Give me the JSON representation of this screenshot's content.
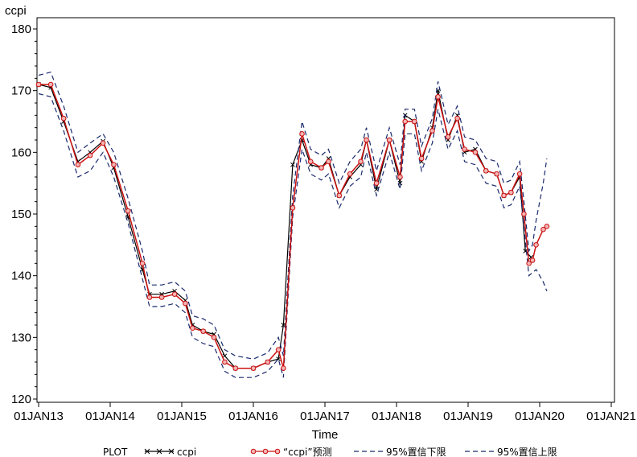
{
  "chart_data": {
    "type": "line",
    "ylabel": "ccpi",
    "xlabel": "Time",
    "ylim": [
      120,
      180
    ],
    "yticks": [
      120,
      130,
      140,
      150,
      160,
      170,
      180
    ],
    "xlim": [
      2013,
      2021
    ],
    "xticks": [
      {
        "value": 2013,
        "label": "01JAN13"
      },
      {
        "value": 2014,
        "label": "01JAN14"
      },
      {
        "value": 2015,
        "label": "01JAN15"
      },
      {
        "value": 2016,
        "label": "01JAN16"
      },
      {
        "value": 2017,
        "label": "01JAN17"
      },
      {
        "value": 2018,
        "label": "01JAN18"
      },
      {
        "value": 2019,
        "label": "01JAN19"
      },
      {
        "value": 2020,
        "label": "01JAN20"
      },
      {
        "value": 2021,
        "label": "01JAN21"
      }
    ],
    "grid": false,
    "legend_title": "PLOT",
    "legend_position": "bottom",
    "series": [
      {
        "name": "ccpi",
        "color": "#000000",
        "style": "solid-x",
        "points": [
          [
            2013.0,
            171.0
          ],
          [
            2013.17,
            170.5
          ],
          [
            2013.35,
            165.0
          ],
          [
            2013.55,
            158.5
          ],
          [
            2013.72,
            160.0
          ],
          [
            2013.9,
            161.8
          ],
          [
            2014.05,
            157.5
          ],
          [
            2014.25,
            149.5
          ],
          [
            2014.45,
            141.0
          ],
          [
            2014.55,
            137.0
          ],
          [
            2014.72,
            137.0
          ],
          [
            2014.9,
            137.5
          ],
          [
            2015.05,
            136.0
          ],
          [
            2015.15,
            132.0
          ],
          [
            2015.3,
            131.0
          ],
          [
            2015.45,
            130.5
          ],
          [
            2015.6,
            127.0
          ],
          [
            2015.75,
            125.0
          ],
          [
            2016.0,
            125.0
          ],
          [
            2016.2,
            126.0
          ],
          [
            2016.35,
            126.5
          ],
          [
            2016.42,
            132.0
          ],
          [
            2016.55,
            158.0
          ],
          [
            2016.68,
            162.0
          ],
          [
            2016.8,
            158.0
          ],
          [
            2016.95,
            157.5
          ],
          [
            2017.05,
            159.0
          ],
          [
            2017.2,
            153.0
          ],
          [
            2017.35,
            156.0
          ],
          [
            2017.5,
            158.0
          ],
          [
            2017.58,
            162.0
          ],
          [
            2017.72,
            154.0
          ],
          [
            2017.9,
            162.0
          ],
          [
            2018.05,
            155.0
          ],
          [
            2018.12,
            166.0
          ],
          [
            2018.25,
            165.0
          ],
          [
            2018.35,
            158.5
          ],
          [
            2018.5,
            164.0
          ],
          [
            2018.58,
            170.0
          ],
          [
            2018.72,
            162.0
          ],
          [
            2018.85,
            166.0
          ],
          [
            2018.95,
            160.0
          ],
          [
            2019.1,
            160.5
          ],
          [
            2019.25,
            157.0
          ],
          [
            2019.4,
            156.5
          ],
          [
            2019.5,
            153.0
          ],
          [
            2019.6,
            153.5
          ],
          [
            2019.72,
            156.0
          ],
          [
            2019.8,
            144.0
          ],
          [
            2019.88,
            143.0
          ]
        ]
      },
      {
        "name": "“ccpi”预测",
        "color": "#cc1111",
        "style": "solid-circle",
        "points": [
          [
            2013.0,
            171.0
          ],
          [
            2013.17,
            171.0
          ],
          [
            2013.35,
            165.5
          ],
          [
            2013.55,
            158.0
          ],
          [
            2013.72,
            159.5
          ],
          [
            2013.9,
            161.5
          ],
          [
            2014.05,
            158.0
          ],
          [
            2014.25,
            150.5
          ],
          [
            2014.45,
            142.0
          ],
          [
            2014.55,
            136.5
          ],
          [
            2014.72,
            136.5
          ],
          [
            2014.9,
            137.0
          ],
          [
            2015.05,
            135.5
          ],
          [
            2015.15,
            131.5
          ],
          [
            2015.3,
            131.0
          ],
          [
            2015.45,
            130.0
          ],
          [
            2015.6,
            126.0
          ],
          [
            2015.75,
            125.0
          ],
          [
            2016.0,
            125.0
          ],
          [
            2016.2,
            126.0
          ],
          [
            2016.35,
            128.0
          ],
          [
            2016.42,
            125.0
          ],
          [
            2016.55,
            151.0
          ],
          [
            2016.68,
            163.0
          ],
          [
            2016.8,
            158.5
          ],
          [
            2016.95,
            157.5
          ],
          [
            2017.05,
            158.5
          ],
          [
            2017.2,
            153.0
          ],
          [
            2017.35,
            156.5
          ],
          [
            2017.5,
            158.5
          ],
          [
            2017.58,
            162.0
          ],
          [
            2017.72,
            155.0
          ],
          [
            2017.9,
            162.0
          ],
          [
            2018.05,
            156.0
          ],
          [
            2018.12,
            165.0
          ],
          [
            2018.25,
            165.0
          ],
          [
            2018.35,
            159.0
          ],
          [
            2018.5,
            163.5
          ],
          [
            2018.58,
            169.0
          ],
          [
            2018.72,
            162.5
          ],
          [
            2018.85,
            165.5
          ],
          [
            2018.95,
            160.5
          ],
          [
            2019.1,
            160.0
          ],
          [
            2019.25,
            157.0
          ],
          [
            2019.4,
            156.5
          ],
          [
            2019.5,
            153.0
          ],
          [
            2019.6,
            153.5
          ],
          [
            2019.72,
            156.5
          ],
          [
            2019.78,
            150.0
          ],
          [
            2019.85,
            142.0
          ],
          [
            2019.9,
            142.5
          ],
          [
            2019.95,
            145.0
          ],
          [
            2020.05,
            147.5
          ],
          [
            2020.1,
            148.0
          ]
        ]
      },
      {
        "name": "95%置信下限",
        "color": "#1a2a6c",
        "style": "dashed",
        "points": [
          [
            2013.0,
            169.5
          ],
          [
            2013.17,
            169.0
          ],
          [
            2013.35,
            163.5
          ],
          [
            2013.55,
            156.0
          ],
          [
            2013.72,
            157.0
          ],
          [
            2013.9,
            160.0
          ],
          [
            2014.05,
            156.0
          ],
          [
            2014.25,
            148.5
          ],
          [
            2014.45,
            139.5
          ],
          [
            2014.55,
            135.0
          ],
          [
            2014.72,
            135.0
          ],
          [
            2014.9,
            135.5
          ],
          [
            2015.05,
            134.0
          ],
          [
            2015.15,
            130.0
          ],
          [
            2015.3,
            129.0
          ],
          [
            2015.45,
            128.5
          ],
          [
            2015.6,
            124.5
          ],
          [
            2015.75,
            123.5
          ],
          [
            2016.0,
            123.5
          ],
          [
            2016.2,
            124.5
          ],
          [
            2016.35,
            126.5
          ],
          [
            2016.42,
            123.5
          ],
          [
            2016.55,
            149.5
          ],
          [
            2016.68,
            160.5
          ],
          [
            2016.8,
            156.5
          ],
          [
            2016.95,
            155.5
          ],
          [
            2017.05,
            156.5
          ],
          [
            2017.2,
            151.0
          ],
          [
            2017.35,
            154.5
          ],
          [
            2017.5,
            156.0
          ],
          [
            2017.58,
            160.0
          ],
          [
            2017.72,
            153.0
          ],
          [
            2017.9,
            160.0
          ],
          [
            2018.05,
            154.0
          ],
          [
            2018.12,
            163.0
          ],
          [
            2018.25,
            163.0
          ],
          [
            2018.35,
            157.0
          ],
          [
            2018.5,
            161.5
          ],
          [
            2018.58,
            167.0
          ],
          [
            2018.72,
            160.5
          ],
          [
            2018.85,
            163.5
          ],
          [
            2018.95,
            158.5
          ],
          [
            2019.1,
            158.0
          ],
          [
            2019.25,
            155.0
          ],
          [
            2019.4,
            154.5
          ],
          [
            2019.5,
            151.0
          ],
          [
            2019.6,
            151.5
          ],
          [
            2019.72,
            154.5
          ],
          [
            2019.78,
            148.0
          ],
          [
            2019.85,
            140.0
          ],
          [
            2019.9,
            140.5
          ],
          [
            2019.95,
            141.0
          ],
          [
            2020.05,
            139.0
          ],
          [
            2020.1,
            137.5
          ]
        ]
      },
      {
        "name": "95%置信上限",
        "color": "#1a2a6c",
        "style": "dashed",
        "points": [
          [
            2013.0,
            172.5
          ],
          [
            2013.17,
            173.0
          ],
          [
            2013.35,
            167.5
          ],
          [
            2013.55,
            160.0
          ],
          [
            2013.72,
            161.5
          ],
          [
            2013.9,
            163.0
          ],
          [
            2014.05,
            160.0
          ],
          [
            2014.25,
            152.5
          ],
          [
            2014.45,
            144.0
          ],
          [
            2014.55,
            138.5
          ],
          [
            2014.72,
            138.5
          ],
          [
            2014.9,
            139.0
          ],
          [
            2015.05,
            137.5
          ],
          [
            2015.15,
            133.5
          ],
          [
            2015.3,
            133.0
          ],
          [
            2015.45,
            132.0
          ],
          [
            2015.6,
            128.0
          ],
          [
            2015.75,
            127.0
          ],
          [
            2016.0,
            126.5
          ],
          [
            2016.2,
            127.5
          ],
          [
            2016.35,
            130.0
          ],
          [
            2016.42,
            127.0
          ],
          [
            2016.55,
            153.0
          ],
          [
            2016.68,
            165.0
          ],
          [
            2016.8,
            160.5
          ],
          [
            2016.95,
            159.5
          ],
          [
            2017.05,
            160.5
          ],
          [
            2017.2,
            155.0
          ],
          [
            2017.35,
            158.5
          ],
          [
            2017.5,
            160.5
          ],
          [
            2017.58,
            164.0
          ],
          [
            2017.72,
            157.0
          ],
          [
            2017.9,
            164.0
          ],
          [
            2018.05,
            158.0
          ],
          [
            2018.12,
            167.0
          ],
          [
            2018.25,
            167.0
          ],
          [
            2018.35,
            161.0
          ],
          [
            2018.5,
            165.5
          ],
          [
            2018.58,
            171.5
          ],
          [
            2018.72,
            164.5
          ],
          [
            2018.85,
            167.5
          ],
          [
            2018.95,
            162.5
          ],
          [
            2019.1,
            162.0
          ],
          [
            2019.25,
            159.0
          ],
          [
            2019.4,
            158.5
          ],
          [
            2019.5,
            155.0
          ],
          [
            2019.6,
            155.5
          ],
          [
            2019.72,
            158.5
          ],
          [
            2019.78,
            152.0
          ],
          [
            2019.85,
            144.0
          ],
          [
            2019.9,
            145.0
          ],
          [
            2019.95,
            149.0
          ],
          [
            2020.05,
            155.0
          ],
          [
            2020.1,
            159.0
          ]
        ]
      }
    ]
  }
}
